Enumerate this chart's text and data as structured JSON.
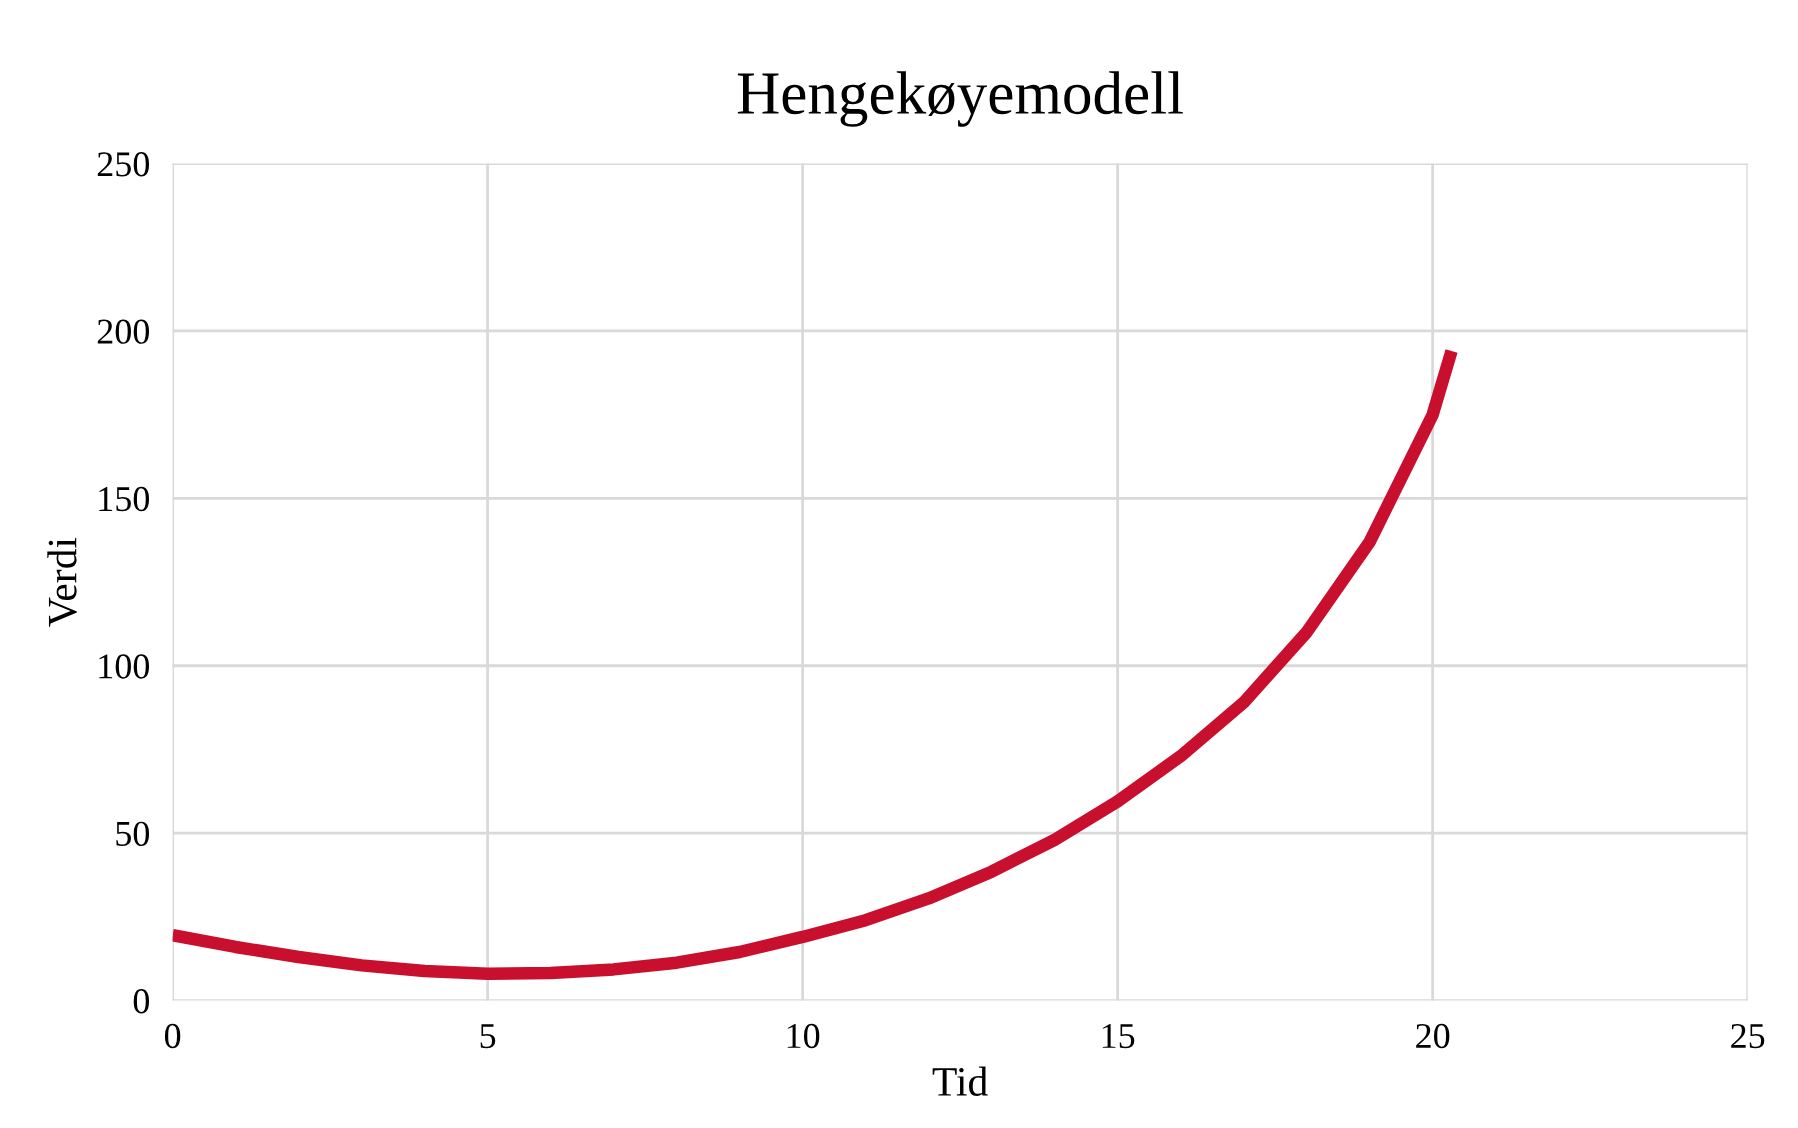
{
  "chart_data": {
    "type": "line",
    "title": "Hengekøyemodell",
    "xlabel": "Tid",
    "ylabel": "Verdi",
    "x": [
      0,
      1,
      2,
      3,
      4,
      5,
      6,
      7,
      8,
      9,
      10,
      11,
      12,
      13,
      14,
      15,
      16,
      17,
      18,
      19,
      20,
      20.3
    ],
    "series": [
      {
        "color": "#c8102e",
        "values": [
          19.5,
          16,
          13,
          10.5,
          8.8,
          8,
          8.2,
          9.3,
          11.3,
          14.5,
          19,
          24,
          30.5,
          38.5,
          48,
          59.5,
          73,
          89,
          110,
          137,
          175,
          194
        ]
      }
    ],
    "xlim": [
      0,
      25
    ],
    "ylim": [
      0,
      250
    ],
    "xticks": [
      0,
      5,
      10,
      15,
      20,
      25
    ],
    "yticks": [
      0,
      50,
      100,
      150,
      200,
      250
    ],
    "grid": true,
    "legend": false,
    "marker": "none",
    "line_style": "solid"
  }
}
